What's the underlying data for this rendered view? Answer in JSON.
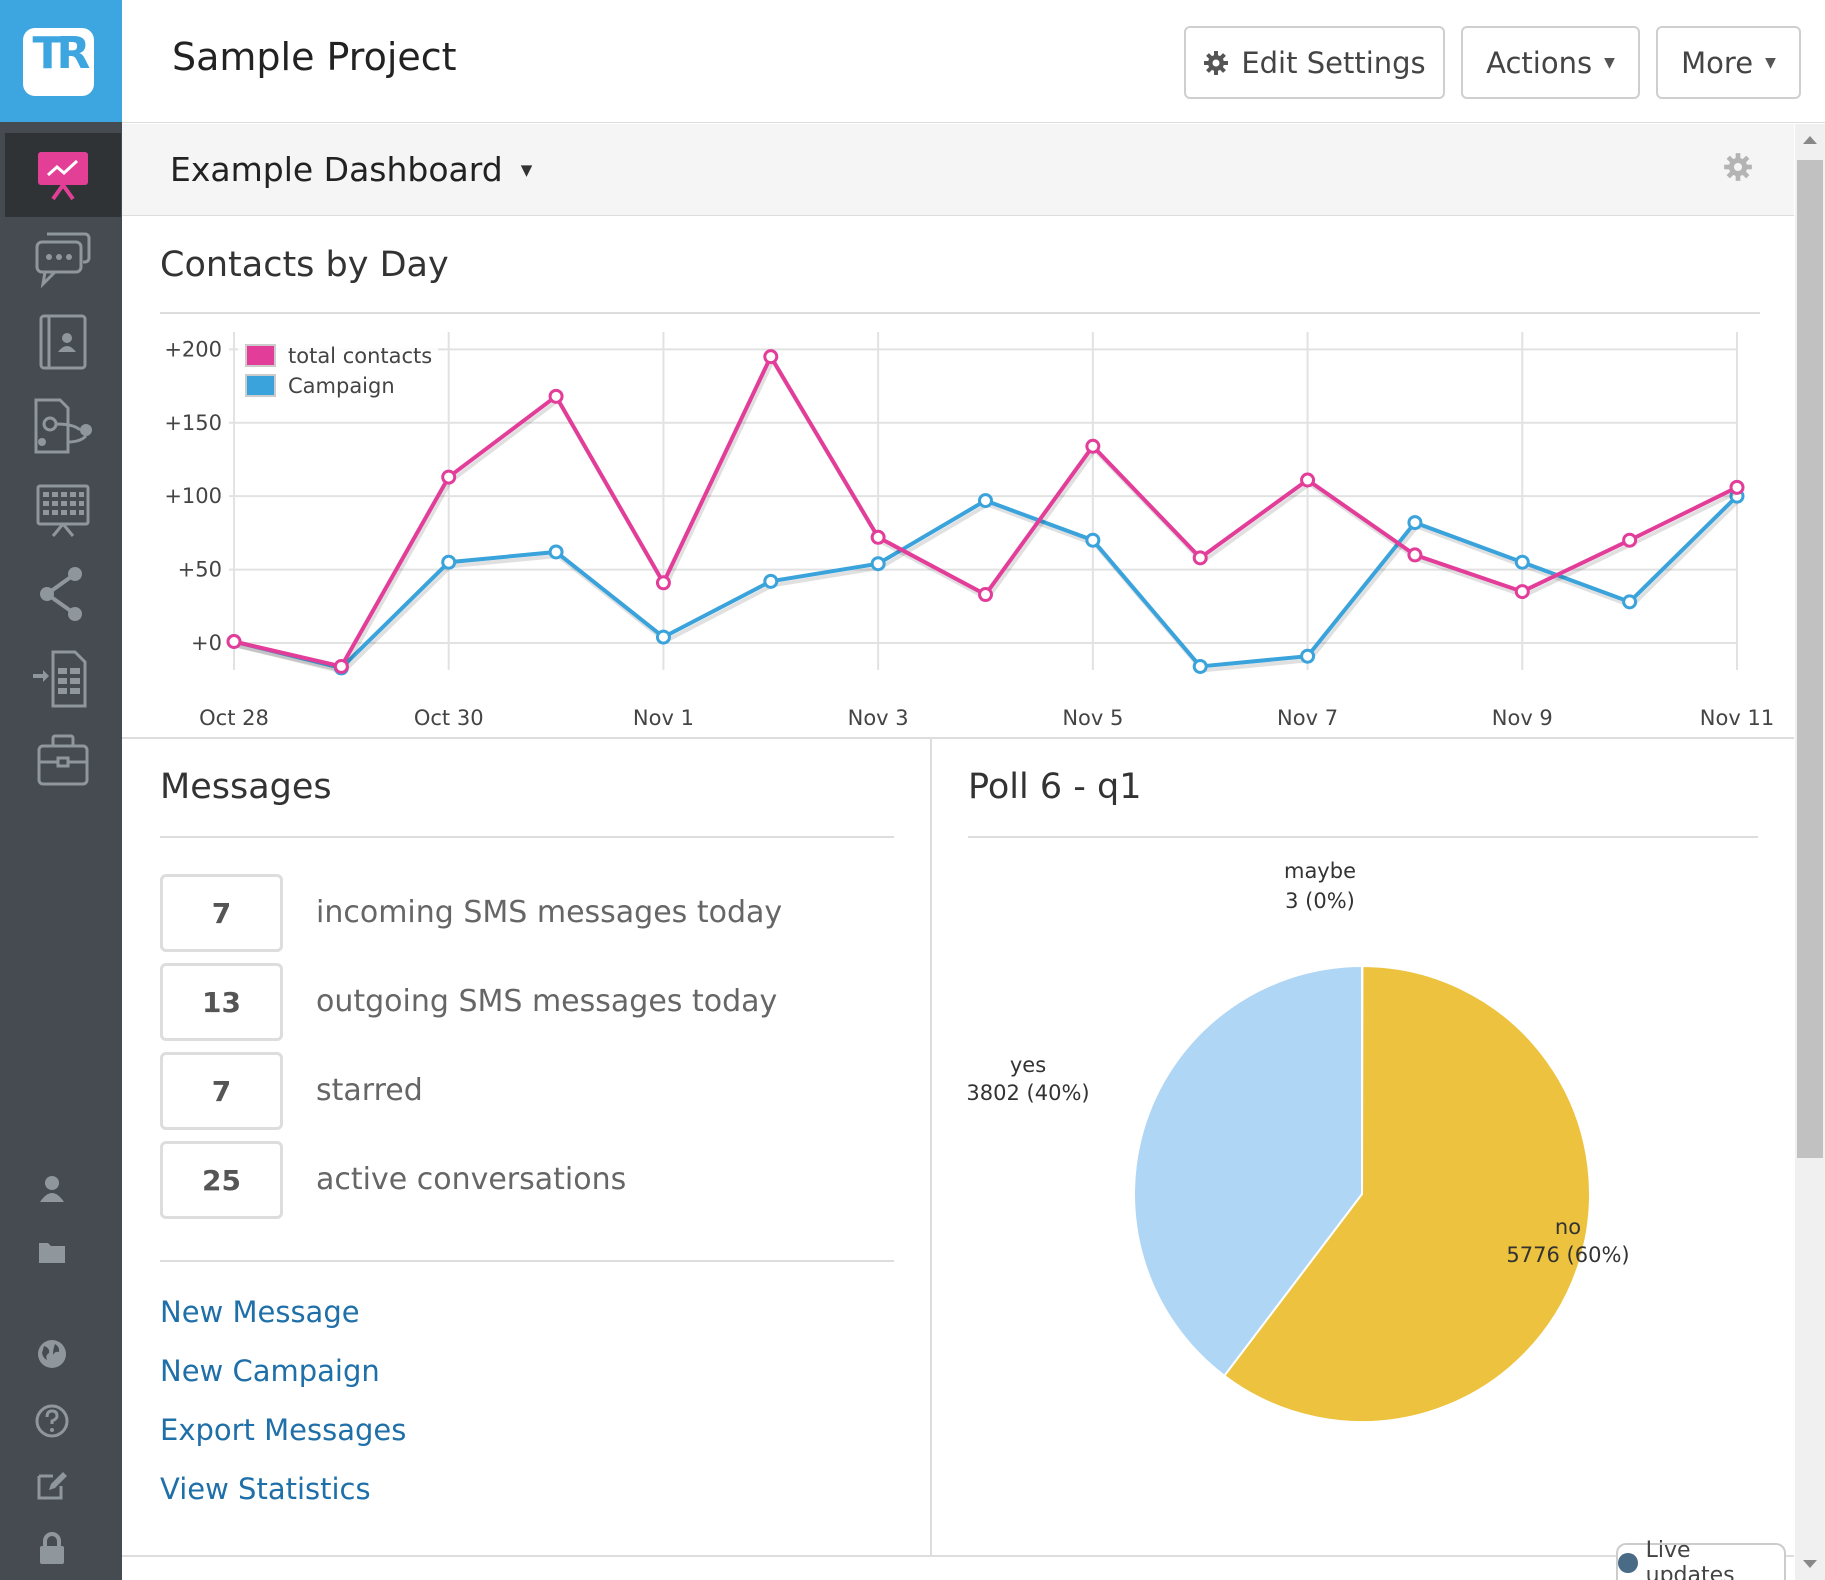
{
  "header": {
    "title": "Sample Project",
    "edit_settings": "Edit Settings",
    "actions": "Actions",
    "more": "More"
  },
  "logo": {
    "text": "TR"
  },
  "sidebar": {
    "items": [
      "dashboard-icon",
      "messages-icon",
      "contacts-icon",
      "flows-icon",
      "calendar-icon",
      "share-icon",
      "import-icon",
      "toolbox-icon"
    ],
    "bottom_items": [
      "user-icon",
      "folder-icon",
      "globe-icon",
      "help-icon",
      "edit-icon",
      "lock-icon"
    ],
    "accent": "#e43f96"
  },
  "dashboard": {
    "title": "Example Dashboard"
  },
  "contacts_panel": {
    "title": "Contacts by Day"
  },
  "chart_data": [
    {
      "type": "line",
      "title": "Contacts by Day",
      "x": [
        "Oct 28",
        "Oct 29",
        "Oct 30",
        "Oct 31",
        "Nov 1",
        "Nov 2",
        "Nov 3",
        "Nov 4",
        "Nov 5",
        "Nov 6",
        "Nov 7",
        "Nov 8",
        "Nov 9",
        "Nov 10",
        "Nov 11"
      ],
      "x_tick_labels": [
        "Oct 28",
        "Oct 30",
        "Nov 1",
        "Nov 3",
        "Nov 5",
        "Nov 7",
        "Nov 9",
        "Nov 11"
      ],
      "y_tick_labels": [
        "+200",
        "+150",
        "+100",
        "+50",
        "+0"
      ],
      "ylim": [
        -15,
        205
      ],
      "grid": true,
      "legend_position": "top-left",
      "series": [
        {
          "name": "total contacts",
          "color": "#e33d9a",
          "values": [
            1,
            -16,
            113,
            168,
            41,
            195,
            72,
            33,
            134,
            58,
            111,
            60,
            35,
            70,
            106
          ]
        },
        {
          "name": "Campaign",
          "color": "#3aa3dc",
          "values": [
            1,
            -17,
            55,
            62,
            4,
            42,
            54,
            97,
            70,
            -16,
            -9,
            82,
            55,
            28,
            100
          ]
        }
      ]
    },
    {
      "type": "pie",
      "title": "Poll 6 - q1",
      "slices": [
        {
          "label": "maybe",
          "value": 3,
          "text": "3 (0%)",
          "color": "#9e9e9e"
        },
        {
          "label": "no",
          "value": 5776,
          "text": "5776 (60%)",
          "color": "#ecc23e"
        },
        {
          "label": "yes",
          "value": 3802,
          "text": "3802 (40%)",
          "color": "#b0d6f5"
        }
      ]
    }
  ],
  "messages": {
    "title": "Messages",
    "stats": [
      {
        "count": "7",
        "label": "incoming SMS messages today"
      },
      {
        "count": "13",
        "label": "outgoing SMS messages today"
      },
      {
        "count": "7",
        "label": "starred"
      },
      {
        "count": "25",
        "label": "active conversations"
      }
    ],
    "links": [
      "New Message",
      "New Campaign",
      "Export Messages",
      "View Statistics"
    ]
  },
  "poll": {
    "title": "Poll 6 - q1"
  },
  "live_updates": "Live updates"
}
